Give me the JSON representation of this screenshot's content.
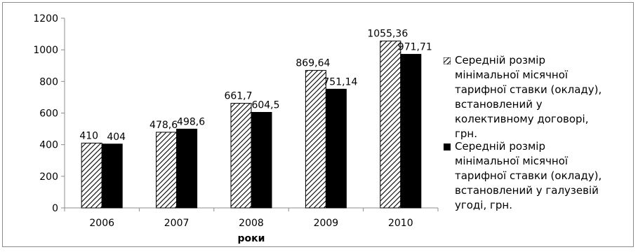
{
  "chart_data": {
    "type": "bar",
    "categories": [
      "2006",
      "2007",
      "2008",
      "2009",
      "2010"
    ],
    "series": [
      {
        "name": "Середній розмір\nмінімальної місячної\nтарифної ставки (окладу),\nвстановлений у\nколективному договорі,\nгрн.",
        "values": [
          410,
          478.6,
          661.7,
          869.64,
          1055.36
        ],
        "value_labels": [
          "410",
          "478,6",
          "661,7",
          "869,64",
          "1055,36"
        ],
        "pattern": "hatched"
      },
      {
        "name": "Середній розмір\nмінімальної місячної\nтарифної ставки (окладу),\nвстановлений у галузевій\nугоді, грн.",
        "values": [
          404,
          498.6,
          604.5,
          751.14,
          971.71
        ],
        "value_labels": [
          "404",
          "498,6",
          "604,5",
          "751,14",
          "971,71"
        ],
        "color": "#000000"
      }
    ],
    "xlabel": "роки",
    "ylabel": "",
    "ylim": [
      0,
      1200
    ],
    "yticks": [
      0,
      200,
      400,
      600,
      800,
      1000,
      1200
    ],
    "grid": false,
    "legend": "right"
  }
}
